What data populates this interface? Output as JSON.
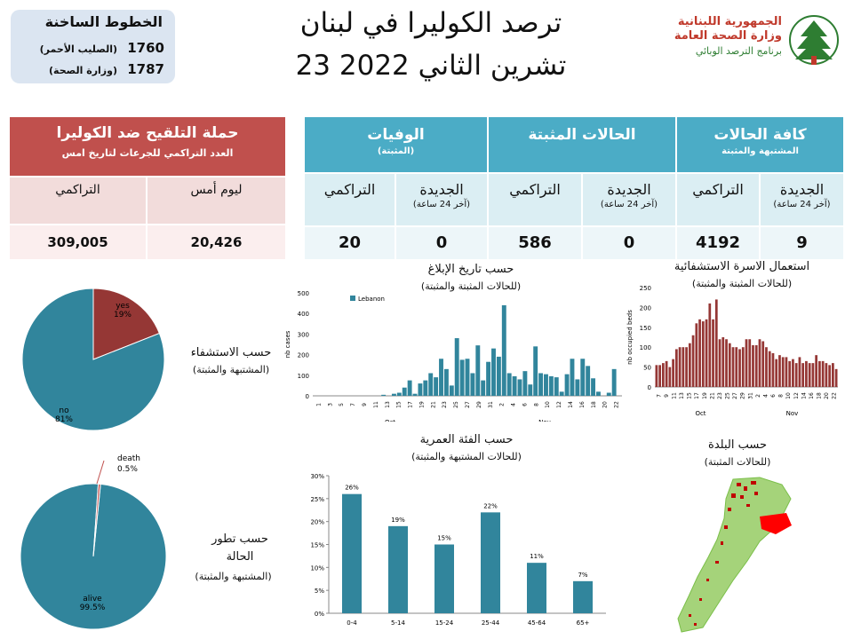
{
  "hotline": {
    "title": "الخطوط الساخنة",
    "lines": [
      {
        "number": "1760",
        "label": "(الصليب الأحمر)"
      },
      {
        "number": "1787",
        "label": "(وزارة الصحة)"
      }
    ]
  },
  "title": {
    "line1": "ترصد الكوليرا في لبنان",
    "line2": "23 تشرين الثاني 2022"
  },
  "logo": {
    "line1": "الجمهورية اللبنانية",
    "line2": "وزارة الصحة العامة",
    "line3": "برنامج الترصد الوبائي"
  },
  "vaccination": {
    "title": "حملة التلقيح ضد الكوليرا",
    "subtitle": "العدد التراكمي للجرعات لتاريخ امس",
    "col_yesterday": "ليوم أمس",
    "col_cumulative": "التراكمي",
    "yesterday_value": "20,426",
    "cumulative_value": "309,005"
  },
  "cases_table": {
    "all_cases": {
      "title": "كافة الحالات",
      "subtitle": "المشتبهة والمثبتة"
    },
    "confirmed": {
      "title": "الحالات المثبتة"
    },
    "deaths": {
      "title": "الوفيات",
      "subtitle": "(المثبتة)"
    },
    "new_label": "الجديدة",
    "new_sub": "(آخر 24 ساعة)",
    "cumulative_label": "التراكمي",
    "values": {
      "all_new": "9",
      "all_cum": "4192",
      "conf_new": "0",
      "conf_cum": "586",
      "death_new": "0",
      "death_cum": "20"
    }
  },
  "labels": {
    "by_report_date": "حسب تاريخ الإبلاغ",
    "by_report_date_sub": "(للحالات المثبتة والمثبتة)",
    "hospital_beds": "استعمال الاسرة الاستشفائية",
    "hospital_beds_sub": "(للحالات المثبتة والمثبتة)",
    "hospitalization": "حسب الاستشفاء",
    "hospitalization_sub": "(المشتبهة والمثبتة)",
    "outcome1": "حسب تطور",
    "outcome2": "الحالة",
    "outcome_sub": "(المشتبهة والمثبتة)",
    "age_group": "حسب الفئة العمرية",
    "age_group_sub": "(للحالات المشتبهة والمثبتة)",
    "by_town": "حسب البلدة",
    "by_town_sub": "(للحالات المثبتة)"
  },
  "chart_data": [
    {
      "id": "hospitalization_pie",
      "type": "pie",
      "labels": [
        "yes",
        "no"
      ],
      "values": [
        19,
        81
      ],
      "colors": [
        "#953735",
        "#31859c"
      ]
    },
    {
      "id": "report_date_bar",
      "type": "bar",
      "ylim": [
        0,
        500
      ],
      "yticks": [
        0,
        100,
        200,
        300,
        400,
        500
      ],
      "ylabel": "nb cases",
      "series": [
        {
          "name": "Lebanon",
          "color": "#31859c"
        }
      ],
      "xtick_labels": [
        "1",
        "3",
        "5",
        "7",
        "9",
        "11",
        "13",
        "15",
        "17",
        "19",
        "21",
        "23",
        "25",
        "27",
        "29",
        "31",
        "2",
        "4",
        "6",
        "8",
        "10",
        "12",
        "14",
        "16",
        "18",
        "20",
        "22"
      ],
      "month_labels": [
        "Oct",
        "Nov"
      ],
      "values": [
        0,
        0,
        0,
        0,
        0,
        0,
        0,
        0,
        0,
        0,
        0,
        0,
        0,
        5,
        0,
        10,
        15,
        40,
        75,
        10,
        60,
        75,
        110,
        90,
        180,
        130,
        50,
        280,
        175,
        180,
        110,
        245,
        75,
        165,
        230,
        190,
        440,
        110,
        95,
        80,
        120,
        55,
        240,
        110,
        105,
        95,
        90,
        20,
        105,
        180,
        80,
        180,
        145,
        85,
        20,
        0,
        15,
        130,
        0
      ],
      "xlabels_count": 59
    },
    {
      "id": "beds_bar",
      "type": "bar",
      "ylim": [
        0,
        250
      ],
      "yticks": [
        0,
        50,
        100,
        150,
        200,
        250
      ],
      "ylabel": "nb occupied beds",
      "color": "#953735",
      "xtick_labels": [
        "7",
        "9",
        "11",
        "13",
        "15",
        "17",
        "19",
        "21",
        "23",
        "25",
        "27",
        "29",
        "31",
        "2",
        "4",
        "6",
        "8",
        "10",
        "12",
        "14",
        "16",
        "18",
        "20",
        "22"
      ],
      "month_labels": [
        "Oct",
        "Nov"
      ],
      "values": [
        55,
        55,
        60,
        65,
        50,
        70,
        95,
        100,
        100,
        100,
        110,
        130,
        160,
        170,
        165,
        170,
        210,
        170,
        220,
        120,
        125,
        120,
        110,
        100,
        100,
        95,
        100,
        120,
        120,
        105,
        105,
        120,
        115,
        100,
        90,
        85,
        70,
        80,
        75,
        75,
        65,
        70,
        60,
        75,
        60,
        65,
        60,
        60,
        80,
        65,
        65,
        60,
        55,
        60,
        45
      ]
    },
    {
      "id": "outcome_pie",
      "type": "pie",
      "labels": [
        "alive",
        "death"
      ],
      "values": [
        99.5,
        0.5
      ],
      "colors": [
        "#31859c",
        "#c0504d"
      ]
    },
    {
      "id": "age_bar",
      "type": "bar",
      "categories": [
        "0-4",
        "5-14",
        "15-24",
        "25-44",
        "45-64",
        "65+"
      ],
      "values": [
        26,
        19,
        15,
        22,
        11,
        7
      ],
      "labels": [
        "26%",
        "19%",
        "15%",
        "22%",
        "11%",
        "7%"
      ],
      "ylim": [
        0,
        30
      ],
      "yticks": [
        "0%",
        "5%",
        "10%",
        "15%",
        "20%",
        "25%",
        "30%"
      ],
      "color": "#31859c"
    }
  ]
}
